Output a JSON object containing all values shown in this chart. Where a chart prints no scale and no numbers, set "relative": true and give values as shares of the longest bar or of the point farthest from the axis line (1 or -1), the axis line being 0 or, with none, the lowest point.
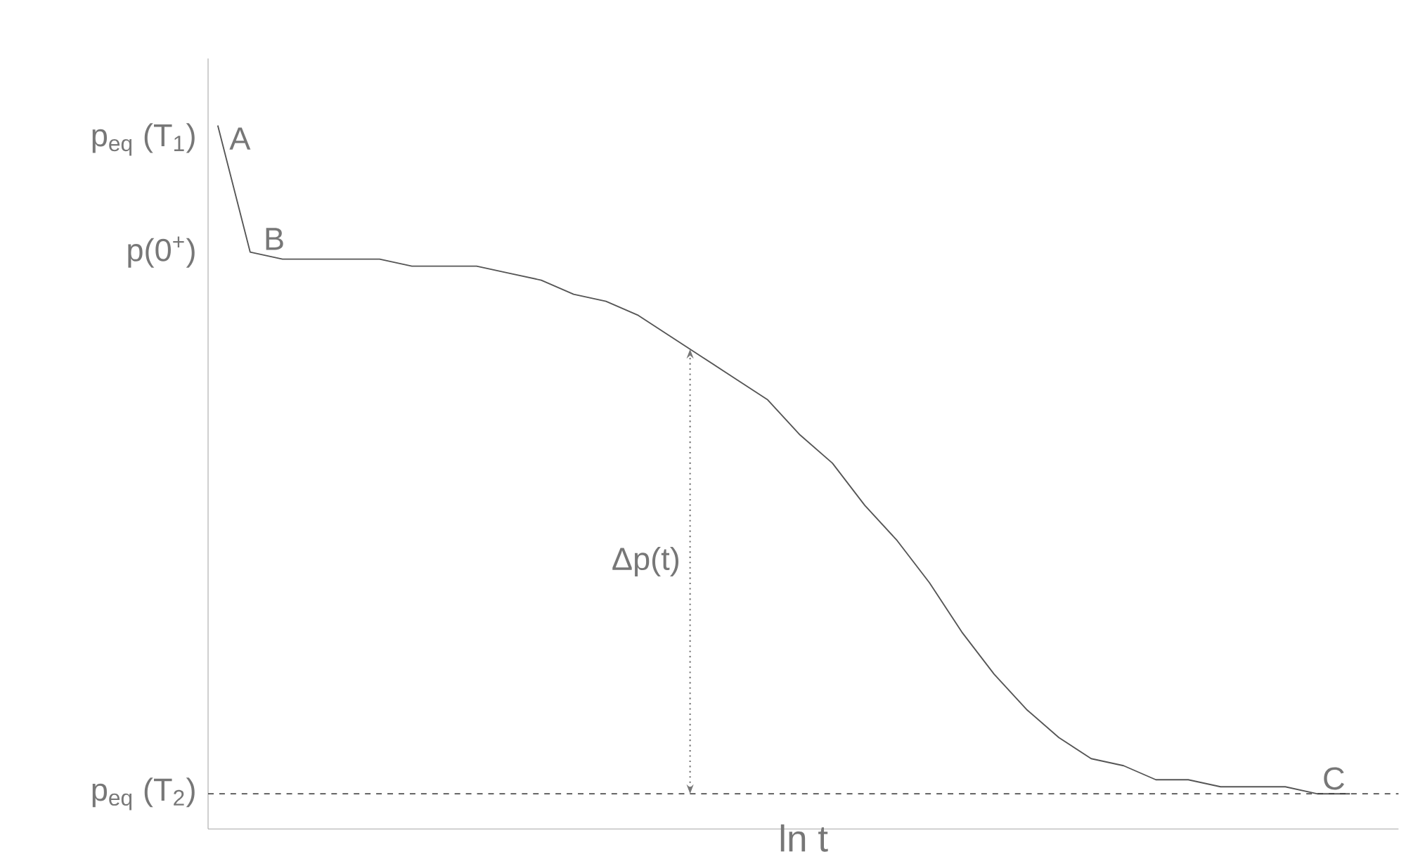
{
  "chart_data": {
    "type": "line",
    "relative": true,
    "xlabel": "ln t",
    "color": "#555555",
    "categories": [
      null,
      null,
      null,
      null,
      null,
      null,
      null,
      null,
      null,
      null,
      null,
      null,
      null,
      null,
      null,
      null,
      null,
      null,
      null,
      null,
      null,
      null,
      null,
      null,
      null,
      null,
      null,
      null,
      null,
      null,
      null,
      null,
      null,
      null,
      null,
      null
    ],
    "values": [
      1.0,
      0.82,
      0.81,
      0.81,
      0.81,
      0.81,
      0.8,
      0.8,
      0.8,
      0.79,
      0.78,
      0.76,
      0.75,
      0.73,
      0.7,
      0.67,
      0.64,
      0.61,
      0.56,
      0.52,
      0.46,
      0.41,
      0.35,
      0.28,
      0.22,
      0.17,
      0.13,
      0.1,
      0.09,
      0.07,
      0.07,
      0.06,
      0.06,
      0.06,
      0.05,
      0.05
    ],
    "ref_lines": [
      {
        "axis": "y",
        "value": 0.05,
        "label": "p$_{eq}$ (T$_{2}$)",
        "line_style": "dashed"
      }
    ],
    "annotations": [
      "A",
      "B",
      "C",
      "p$_{eq}$ (T$_{1}$)",
      "p(0$^{+}$)",
      "Δp(t)"
    ]
  }
}
